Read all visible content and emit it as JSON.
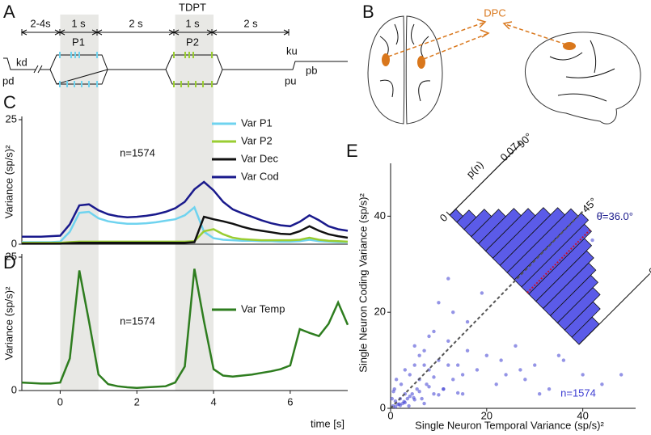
{
  "panels": {
    "a": {
      "letter": "A",
      "title": "TDPT",
      "durations": [
        "2-4s",
        "1 s",
        "2 s",
        "1 s",
        "2 s"
      ],
      "stimuli": [
        "P1",
        "P2"
      ],
      "events": [
        "kd",
        "pd",
        "ku",
        "pu",
        "pb"
      ]
    },
    "b": {
      "letter": "B",
      "area": "DPC"
    },
    "c": {
      "letter": "C"
    },
    "d": {
      "letter": "D"
    },
    "e": {
      "letter": "E"
    }
  },
  "chart_data": [
    {
      "type": "line",
      "ylabel": "Variance (sp/s)²",
      "annotation": "n=1574",
      "legend": "top-right",
      "xlim": [
        -1,
        7.5
      ],
      "ylim": [
        0,
        25
      ],
      "yticks": [
        0,
        25
      ],
      "shaded": [
        [
          0,
          1
        ],
        [
          3,
          4
        ]
      ],
      "x": [
        -1,
        -0.75,
        -0.5,
        -0.25,
        0,
        0.25,
        0.5,
        0.75,
        1,
        1.25,
        1.5,
        1.75,
        2,
        2.25,
        2.5,
        2.75,
        3,
        3.25,
        3.5,
        3.75,
        4,
        4.25,
        4.5,
        4.75,
        5,
        5.25,
        5.5,
        5.75,
        6,
        6.25,
        6.5,
        6.75,
        7,
        7.25,
        7.5
      ],
      "series": [
        {
          "name": "Var P1",
          "color": "#6fd3ef",
          "values": [
            0.4,
            0.4,
            0.4,
            0.4,
            0.5,
            2.5,
            6.3,
            6.5,
            5.2,
            4.6,
            4.3,
            4.1,
            4.1,
            4.2,
            4.4,
            4.7,
            5.0,
            5.8,
            7.4,
            2.5,
            1.2,
            0.9,
            0.8,
            0.7,
            0.7,
            0.6,
            0.6,
            0.5,
            0.5,
            0.6,
            0.9,
            0.6,
            0.5,
            0.4,
            0.4
          ]
        },
        {
          "name": "Var P2",
          "color": "#9acd32",
          "values": [
            0.3,
            0.3,
            0.3,
            0.3,
            0.3,
            0.4,
            0.5,
            0.5,
            0.5,
            0.5,
            0.5,
            0.5,
            0.5,
            0.5,
            0.5,
            0.5,
            0.5,
            0.5,
            0.6,
            2.6,
            3.0,
            2.0,
            1.3,
            1.0,
            0.9,
            0.8,
            0.8,
            0.8,
            0.8,
            0.9,
            1.3,
            0.9,
            0.7,
            0.6,
            0.5
          ]
        },
        {
          "name": "Var Dec",
          "color": "#111111",
          "values": [
            0.1,
            0.1,
            0.1,
            0.1,
            0.1,
            0.2,
            0.3,
            0.3,
            0.3,
            0.3,
            0.3,
            0.3,
            0.3,
            0.3,
            0.3,
            0.3,
            0.3,
            0.3,
            0.4,
            5.5,
            5.0,
            4.6,
            4.1,
            3.5,
            3.0,
            2.7,
            2.4,
            2.1,
            2.0,
            2.6,
            3.6,
            2.7,
            2.0,
            1.6,
            1.3
          ]
        },
        {
          "name": "Var Cod",
          "color": "#1a1a8c",
          "values": [
            1.5,
            1.5,
            1.5,
            1.6,
            1.7,
            4.0,
            7.8,
            8.0,
            6.8,
            6.0,
            5.6,
            5.4,
            5.5,
            5.7,
            6.0,
            6.5,
            7.2,
            8.5,
            11.0,
            12.5,
            10.8,
            8.5,
            7.0,
            6.2,
            5.5,
            4.8,
            4.2,
            3.8,
            3.6,
            4.5,
            5.8,
            4.8,
            3.6,
            3.0,
            2.7
          ]
        }
      ]
    },
    {
      "type": "line",
      "ylabel": "Variance (sp/s)²",
      "xlabel": "time [s]",
      "annotation": "n=1574",
      "legend": "top-right",
      "xlim": [
        -1,
        7.5
      ],
      "ylim": [
        0,
        25
      ],
      "yticks": [
        0,
        25
      ],
      "xticks": [
        0,
        2,
        4,
        6
      ],
      "shaded": [
        [
          0,
          1
        ],
        [
          3,
          4
        ]
      ],
      "x": [
        -1,
        -0.75,
        -0.5,
        -0.25,
        0,
        0.25,
        0.5,
        0.75,
        1,
        1.25,
        1.5,
        1.75,
        2,
        2.25,
        2.5,
        2.75,
        3,
        3.25,
        3.5,
        3.75,
        4,
        4.25,
        4.5,
        4.75,
        5,
        5.25,
        5.5,
        5.75,
        6,
        6.25,
        6.5,
        6.75,
        7,
        7.25,
        7.5
      ],
      "series": [
        {
          "name": "Var Temp",
          "color": "#2e7d1f",
          "values": [
            1.5,
            1.4,
            1.3,
            1.3,
            1.5,
            6,
            22.5,
            13,
            3,
            1.2,
            0.8,
            0.6,
            0.5,
            0.6,
            0.7,
            0.8,
            1.5,
            4.5,
            22.8,
            13,
            4,
            2.8,
            2.6,
            2.8,
            3.0,
            3.3,
            3.6,
            4.0,
            4.7,
            11.5,
            10.8,
            10.2,
            12.5,
            16.5,
            12.3
          ]
        }
      ]
    },
    {
      "type": "scatter",
      "xlabel": "Single Neuron Temporal Variance (sp/s)²",
      "ylabel": "Single Neuron Coding Variance (sp/s)²",
      "annotation": "n=1574",
      "color": "#3c3cd2",
      "xlim": [
        0,
        51
      ],
      "ylim": [
        0,
        51
      ],
      "xticks": [
        0,
        20,
        40
      ],
      "yticks": [
        0,
        20,
        40
      ],
      "x": [
        0.5,
        1,
        1.5,
        2,
        2.5,
        3,
        0.8,
        1.2,
        2.2,
        3.5,
        4,
        4.5,
        5,
        5.5,
        6,
        6.5,
        7,
        7.5,
        8,
        9,
        10,
        11,
        12,
        13,
        14,
        15,
        16,
        18,
        20,
        22,
        24,
        26,
        28,
        30,
        33,
        36,
        40,
        44,
        48,
        1,
        2,
        3,
        4,
        5,
        6,
        7,
        8,
        9,
        10,
        12,
        14,
        16,
        3,
        5,
        7,
        9,
        11,
        13,
        15,
        19,
        23,
        27,
        31,
        35,
        0.3,
        0.6,
        1.8,
        2.8,
        3.8,
        4.8,
        6,
        8,
        10,
        12,
        42,
        36
      ],
      "y": [
        0.5,
        1.5,
        0.8,
        2,
        1,
        3,
        4,
        6,
        5,
        2,
        7,
        3,
        9,
        4,
        6,
        2,
        12,
        5,
        8,
        3,
        10,
        4,
        14,
        6,
        9,
        3,
        18,
        8,
        11,
        5,
        7,
        13,
        6,
        9,
        4,
        10,
        7,
        5,
        7,
        0.3,
        0.6,
        1.2,
        2.5,
        1.8,
        3.5,
        1,
        4.5,
        6.5,
        2.8,
        9,
        3.2,
        12,
        8,
        13,
        9,
        16,
        4,
        20,
        7,
        24,
        10,
        8,
        3,
        11,
        2,
        3.5,
        0.9,
        1.4,
        0.5,
        2.2,
        11,
        15,
        22,
        27,
        35,
        20
      ]
    },
    {
      "type": "angular-histogram",
      "rlabel": "p(n)",
      "color": "#5b5be8",
      "mean": 36.0,
      "mean_label": "θ̄=36.0°",
      "rlim": [
        0,
        0.07
      ],
      "rticks": [
        0,
        0.07
      ],
      "angle_ticks": [
        {
          "value": 0,
          "label": "0°"
        },
        {
          "value": 45,
          "label": "45°"
        },
        {
          "value": 90,
          "label": "90°"
        }
      ],
      "bins": [
        0,
        5,
        10,
        15,
        20,
        25,
        30,
        35,
        40,
        45,
        50,
        55,
        60,
        65,
        70,
        75,
        80,
        85,
        90
      ],
      "values": [
        0.02,
        0.028,
        0.035,
        0.04,
        0.045,
        0.05,
        0.055,
        0.062,
        0.066,
        0.063,
        0.057,
        0.05,
        0.042,
        0.035,
        0.027,
        0.02,
        0.012,
        0.006
      ]
    }
  ]
}
